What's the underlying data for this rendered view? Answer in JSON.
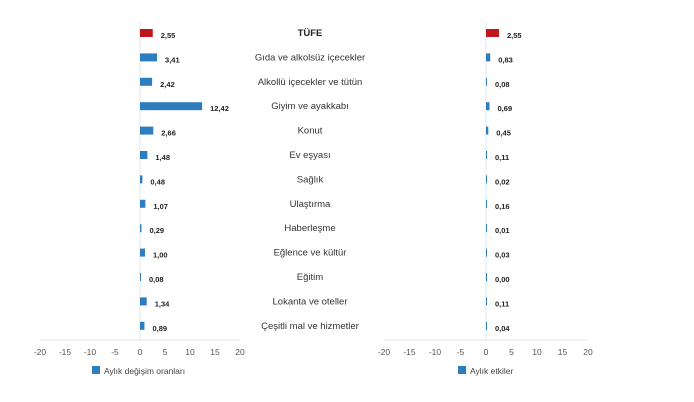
{
  "chart_data": [
    {
      "type": "bar",
      "orientation": "horizontal",
      "categories": [
        "TÜFE",
        "Gıda ve alkolsüz içecekler",
        "Alkollü içecekler ve tütün",
        "Giyim ve ayakkabı",
        "Konut",
        "Ev eşyası",
        "Sağlık",
        "Ulaştırma",
        "Haberleşme",
        "Eğlence ve kültür",
        "Eğitim",
        "Lokanta ve oteller",
        "Çeşitli mal ve hizmetler"
      ],
      "series": [
        {
          "name": "Aylık değişim oranları",
          "values": [
            2.55,
            3.41,
            2.42,
            12.42,
            2.66,
            1.48,
            0.48,
            1.07,
            0.29,
            1.0,
            0.08,
            1.34,
            0.89
          ],
          "labels": [
            "2,55",
            "3,41",
            "2,42",
            "12,42",
            "2,66",
            "1,48",
            "0,48",
            "1,07",
            "0,29",
            "1,00",
            "0,08",
            "1,34",
            "0,89"
          ]
        }
      ],
      "xlim": [
        -20,
        20
      ],
      "xticks": [
        "-20",
        "-15",
        "-10",
        "-5",
        "0",
        "5",
        "10",
        "15",
        "20"
      ],
      "legend": "bottom-left",
      "grid": false,
      "colors": {
        "highlight": "#c0171f",
        "bar": "#2e7ebf"
      }
    },
    {
      "type": "bar",
      "orientation": "horizontal",
      "categories": [
        "TÜFE",
        "Gıda ve alkolsüz içecekler",
        "Alkollü içecekler ve tütün",
        "Giyim ve ayakkabı",
        "Konut",
        "Ev eşyası",
        "Sağlık",
        "Ulaştırma",
        "Haberleşme",
        "Eğlence ve kültür",
        "Eğitim",
        "Lokanta ve oteller",
        "Çeşitli mal ve hizmetler"
      ],
      "series": [
        {
          "name": "Aylık etkiler",
          "values": [
            2.55,
            0.83,
            0.08,
            0.69,
            0.45,
            0.11,
            0.02,
            0.16,
            0.01,
            0.03,
            0.0,
            0.11,
            0.04
          ],
          "labels": [
            "2,55",
            "0,83",
            "0,08",
            "0,69",
            "0,45",
            "0,11",
            "0,02",
            "0,16",
            "0,01",
            "0,03",
            "0,00",
            "0,11",
            "0,04"
          ]
        }
      ],
      "xlim": [
        -20,
        20
      ],
      "xticks": [
        "-20",
        "-15",
        "-10",
        "-5",
        "0",
        "5",
        "10",
        "15",
        "20"
      ],
      "legend": "bottom-left",
      "grid": false,
      "colors": {
        "highlight": "#c0171f",
        "bar": "#2e7ebf"
      }
    }
  ]
}
